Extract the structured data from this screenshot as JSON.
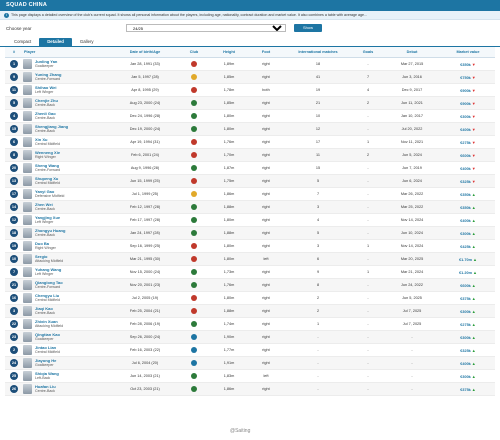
{
  "header": {
    "title": "SQUAD CHINA",
    "info": "This page displays a detailed overview of the club's current squad. It shows all personal information about the players, including age, nationality, contract duration and market value. It also combines a table with average age..."
  },
  "filter": {
    "label": "Choose year",
    "season": "24/25",
    "show_label": "Show"
  },
  "tabs": [
    "Compact",
    "Detailed",
    "Gallery"
  ],
  "active_tab": 1,
  "columns": [
    "#",
    "Player",
    "Date of birth/Age",
    "Club",
    "Height",
    "Foot",
    "International matches",
    "Goals",
    "Debut",
    "Market value"
  ],
  "rows": [
    {
      "num": "1",
      "name": "Junling Yan",
      "pos": "Goalkeeper",
      "dob": "Jan 28, 1991 (33)",
      "club": "#c0392b",
      "height": "1,89m",
      "foot": "right",
      "caps": "18",
      "goals": "-",
      "debut": "Mar 27, 2015",
      "value": "€350k",
      "trend": "down"
    },
    {
      "num": "9",
      "name": "Yuning Zhang",
      "pos": "Centre-Forward",
      "dob": "Jan 5, 1997 (28)",
      "club": "#e1a92a",
      "height": "1,85m",
      "foot": "right",
      "caps": "41",
      "goals": "7",
      "debut": "Jun 3, 2016",
      "value": "€750k",
      "trend": "down"
    },
    {
      "num": "11",
      "name": "Shihao Wei",
      "pos": "Left Winger",
      "dob": "Apr 8, 1995 (29)",
      "club": "#c0392b",
      "height": "1,78m",
      "foot": "both",
      "caps": "19",
      "goals": "4",
      "debut": "Dec 9, 2017",
      "value": "€900k",
      "trend": "down"
    },
    {
      "num": "5",
      "name": "Chenjie Zhu",
      "pos": "Centre-Back",
      "dob": "Aug 23, 2000 (24)",
      "club": "#2c7a3a",
      "height": "1,85m",
      "foot": "right",
      "caps": "21",
      "goals": "2",
      "debut": "Jun 11, 2021",
      "value": "€900k",
      "trend": "down"
    },
    {
      "num": "4",
      "name": "Zhenli Gao",
      "pos": "Centre-Back",
      "dob": "Dec 24, 1996 (28)",
      "club": "#2c7a3a",
      "height": "1,80m",
      "foot": "right",
      "caps": "10",
      "goals": "-",
      "debut": "Jan 10, 2017",
      "value": "€300k",
      "trend": "down"
    },
    {
      "num": "15",
      "name": "Shengjiang Jiang",
      "pos": "Centre-Back",
      "dob": "Dec 19, 2000 (24)",
      "club": "#2c7a3a",
      "height": "1,80m",
      "foot": "right",
      "caps": "12",
      "goals": "-",
      "debut": "Jul 20, 2022",
      "value": "€400k",
      "trend": "down"
    },
    {
      "num": "6",
      "name": "Xin Xu",
      "pos": "Central Midfield",
      "dob": "Apr 19, 1994 (31)",
      "club": "#c0392b",
      "height": "1,76m",
      "foot": "right",
      "caps": "17",
      "goals": "1",
      "debut": "Nov 11, 2021",
      "value": "€275k",
      "trend": "down"
    },
    {
      "num": "8",
      "name": "Wenneng Xie",
      "pos": "Right Winger",
      "dob": "Feb 6, 2001 (24)",
      "club": "#c0392b",
      "height": "1,70m",
      "foot": "right",
      "caps": "11",
      "goals": "2",
      "debut": "Jun 5, 2024",
      "value": "€600k",
      "trend": "down"
    },
    {
      "num": "20",
      "name": "Sheng Wang",
      "pos": "Centre-Forward",
      "dob": "Aug 9, 1996 (28)",
      "club": "#2c7a3a",
      "height": "1,87m",
      "foot": "right",
      "caps": "15",
      "goals": "-",
      "debut": "Jun 7, 2019",
      "value": "€400k",
      "trend": "down"
    },
    {
      "num": "13",
      "name": "Shupeng Xu",
      "pos": "Central Midfield",
      "dob": "Jun 15, 1999 (25)",
      "club": "#c0392b",
      "height": "1,75m",
      "foot": "right",
      "caps": "5",
      "goals": "-",
      "debut": "Jun 6, 2024",
      "value": "€325k",
      "trend": "down"
    },
    {
      "num": "17",
      "name": "Yanyi Gao",
      "pos": "Defensive Midfield",
      "dob": "Jul 1, 1999 (25)",
      "club": "#e1a92a",
      "height": "1,86m",
      "foot": "right",
      "caps": "7",
      "goals": "-",
      "debut": "Mar 26, 2022",
      "value": "€350k",
      "trend": "up"
    },
    {
      "num": "14",
      "name": "Zhen Wei",
      "pos": "Centre-Back",
      "dob": "Feb 12, 1997 (28)",
      "club": "#2c7a3a",
      "height": "1,88m",
      "foot": "right",
      "caps": "3",
      "goals": "-",
      "debut": "Mar 25, 2022",
      "value": "€350k",
      "trend": "up"
    },
    {
      "num": "12",
      "name": "Yangjing Xue",
      "pos": "Left Winger",
      "dob": "Feb 17, 1997 (28)",
      "club": "#2c7a3a",
      "height": "1,80m",
      "foot": "right",
      "caps": "4",
      "goals": "-",
      "debut": "Nov 14, 2024",
      "value": "€400k",
      "trend": "up"
    },
    {
      "num": "18",
      "name": "Zhongyu Huang",
      "pos": "Centre-Back",
      "dob": "Jan 24, 1997 (28)",
      "club": "#2c7a3a",
      "height": "1,88m",
      "foot": "right",
      "caps": "5",
      "goals": "-",
      "debut": "Jun 10, 2024",
      "value": "€300k",
      "trend": "up"
    },
    {
      "num": "19",
      "name": "Duo Ba",
      "pos": "Right Winger",
      "dob": "Sep 16, 1999 (25)",
      "club": "#c0392b",
      "height": "1,80m",
      "foot": "right",
      "caps": "3",
      "goals": "1",
      "debut": "Nov 14, 2024",
      "value": "€425k",
      "trend": "up"
    },
    {
      "num": "10",
      "name": "Sergio",
      "pos": "Attacking Midfield",
      "dob": "Mar 21, 1995 (30)",
      "club": "#c0392b",
      "height": "1,80m",
      "foot": "left",
      "caps": "6",
      "goals": "-",
      "debut": "Mar 20, 2025",
      "value": "€1.70m",
      "trend": "up"
    },
    {
      "num": "7",
      "name": "Yuhang Wang",
      "pos": "Left Winger",
      "dob": "Nov 15, 2000 (24)",
      "club": "#2c7a3a",
      "height": "1,73m",
      "foot": "right",
      "caps": "9",
      "goals": "1",
      "debut": "Mar 21, 2024",
      "value": "€1.20m",
      "trend": "up"
    },
    {
      "num": "21",
      "name": "Qianglong Tao",
      "pos": "Centre-Forward",
      "dob": "Nov 20, 2001 (23)",
      "club": "#2c7a3a",
      "height": "1,76m",
      "foot": "right",
      "caps": "8",
      "goals": "-",
      "debut": "Jun 24, 2022",
      "value": "€600k",
      "trend": "up"
    },
    {
      "num": "16",
      "name": "Chengyu Liu",
      "pos": "Central Midfield",
      "dob": "Jul 2, 2005 (19)",
      "club": "#c0392b",
      "height": "1,80m",
      "foot": "right",
      "caps": "2",
      "goals": "-",
      "debut": "Jun 5, 2025",
      "value": "€375k",
      "trend": "up"
    },
    {
      "num": "3",
      "name": "Jiaqi Kao",
      "pos": "Centre-Back",
      "dob": "Feb 25, 2004 (21)",
      "club": "#c0392b",
      "height": "1,88m",
      "foot": "right",
      "caps": "2",
      "goals": "-",
      "debut": "Jul 7, 2025",
      "value": "€300k",
      "trend": "up"
    },
    {
      "num": "22",
      "name": "Zhixin Xuan",
      "pos": "Attacking Midfield",
      "dob": "Feb 28, 2006 (19)",
      "club": "#2c7a3a",
      "height": "1,74m",
      "foot": "right",
      "caps": "1",
      "goals": "-",
      "debut": "Jul 7, 2025",
      "value": "€275k",
      "trend": "up"
    },
    {
      "num": "23",
      "name": "Qingtian Kao",
      "pos": "Goalkeeper",
      "dob": "Sep 26, 2000 (24)",
      "club": "#1d75a3",
      "height": "1,90m",
      "foot": "right",
      "caps": "-",
      "goals": "-",
      "debut": "-",
      "value": "€300k",
      "trend": "up"
    },
    {
      "num": "2",
      "name": "Jintao Lian",
      "pos": "Central Midfield",
      "dob": "Feb 16, 2003 (22)",
      "club": "#1d75a3",
      "height": "1,77m",
      "foot": "right",
      "caps": "-",
      "goals": "-",
      "debut": "-",
      "value": "€325k",
      "trend": "up"
    },
    {
      "num": "24",
      "name": "Jiayong He",
      "pos": "Goalkeeper",
      "dob": "Jul 6, 2004 (20)",
      "club": "#1d75a3",
      "height": "1,91m",
      "foot": "right",
      "caps": "-",
      "goals": "-",
      "debut": "-",
      "value": "€400k",
      "trend": "up"
    },
    {
      "num": "25",
      "name": "Shiqia Wang",
      "pos": "Left-Back",
      "dob": "Jun 14, 2003 (21)",
      "club": "#2c7a3a",
      "height": "1,83m",
      "foot": "left",
      "caps": "-",
      "goals": "-",
      "debut": "-",
      "value": "€300k",
      "trend": "up"
    },
    {
      "num": "26",
      "name": "Huafan Liu",
      "pos": "Centre-Back",
      "dob": "Oct 23, 2003 (21)",
      "club": "#2c7a3a",
      "height": "1,86m",
      "foot": "right",
      "caps": "-",
      "goals": "-",
      "debut": "-",
      "value": "€375k",
      "trend": "up"
    }
  ],
  "watermark": "@Saiting"
}
